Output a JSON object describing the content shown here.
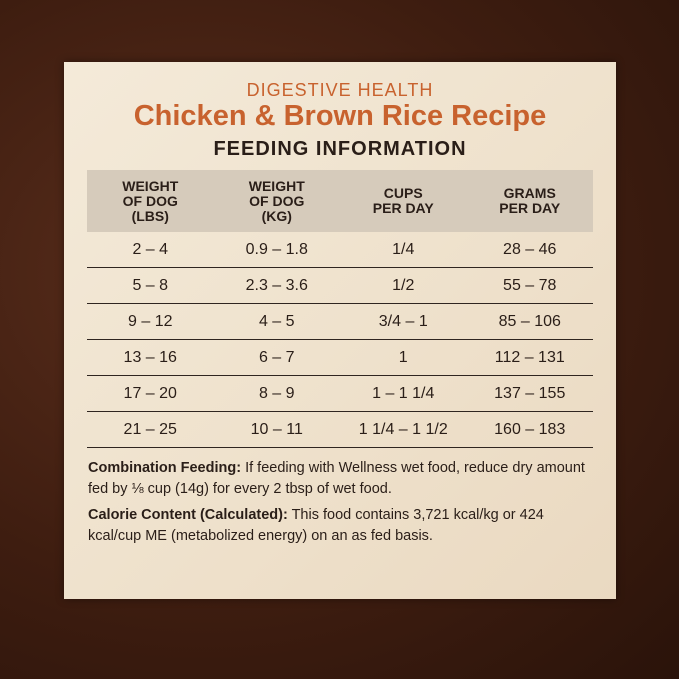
{
  "subtitle": "DIGESTIVE HEALTH",
  "title": "Chicken & Brown Rice Recipe",
  "section": "FEEDING INFORMATION",
  "table": {
    "headers": [
      [
        "WEIGHT",
        "OF DOG",
        "(LBS)"
      ],
      [
        "WEIGHT",
        "OF DOG",
        "(KG)"
      ],
      [
        "CUPS",
        "PER DAY"
      ],
      [
        "GRAMS",
        "PER DAY"
      ]
    ],
    "rows": [
      [
        "2 – 4",
        "0.9 – 1.8",
        "1/4",
        "28 – 46"
      ],
      [
        "5 – 8",
        "2.3 – 3.6",
        "1/2",
        "55 – 78"
      ],
      [
        "9 – 12",
        "4 – 5",
        "3/4 – 1",
        "85 – 106"
      ],
      [
        "13 – 16",
        "6 – 7",
        "1",
        "112 – 131"
      ],
      [
        "17 – 20",
        "8 – 9",
        "1 – 1 1/4",
        "137 – 155"
      ],
      [
        "21 – 25",
        "10 – 11",
        "1 1/4 – 1 1/2",
        "160 – 183"
      ]
    ]
  },
  "notes": [
    {
      "label": "Combination Feeding:",
      "text": " If feeding with Wellness wet food, reduce dry amount fed by ⅛ cup (14g) for every 2 tbsp of wet food."
    },
    {
      "label": "Calorie Content (Calculated):",
      "text": " This food contains 3,721 kcal/kg or 424 kcal/cup ME (metabolized energy) on an as fed basis."
    }
  ],
  "colors": {
    "accent": "#c8622e",
    "header_band": "#d6cbbb",
    "text": "#2a1e18"
  }
}
